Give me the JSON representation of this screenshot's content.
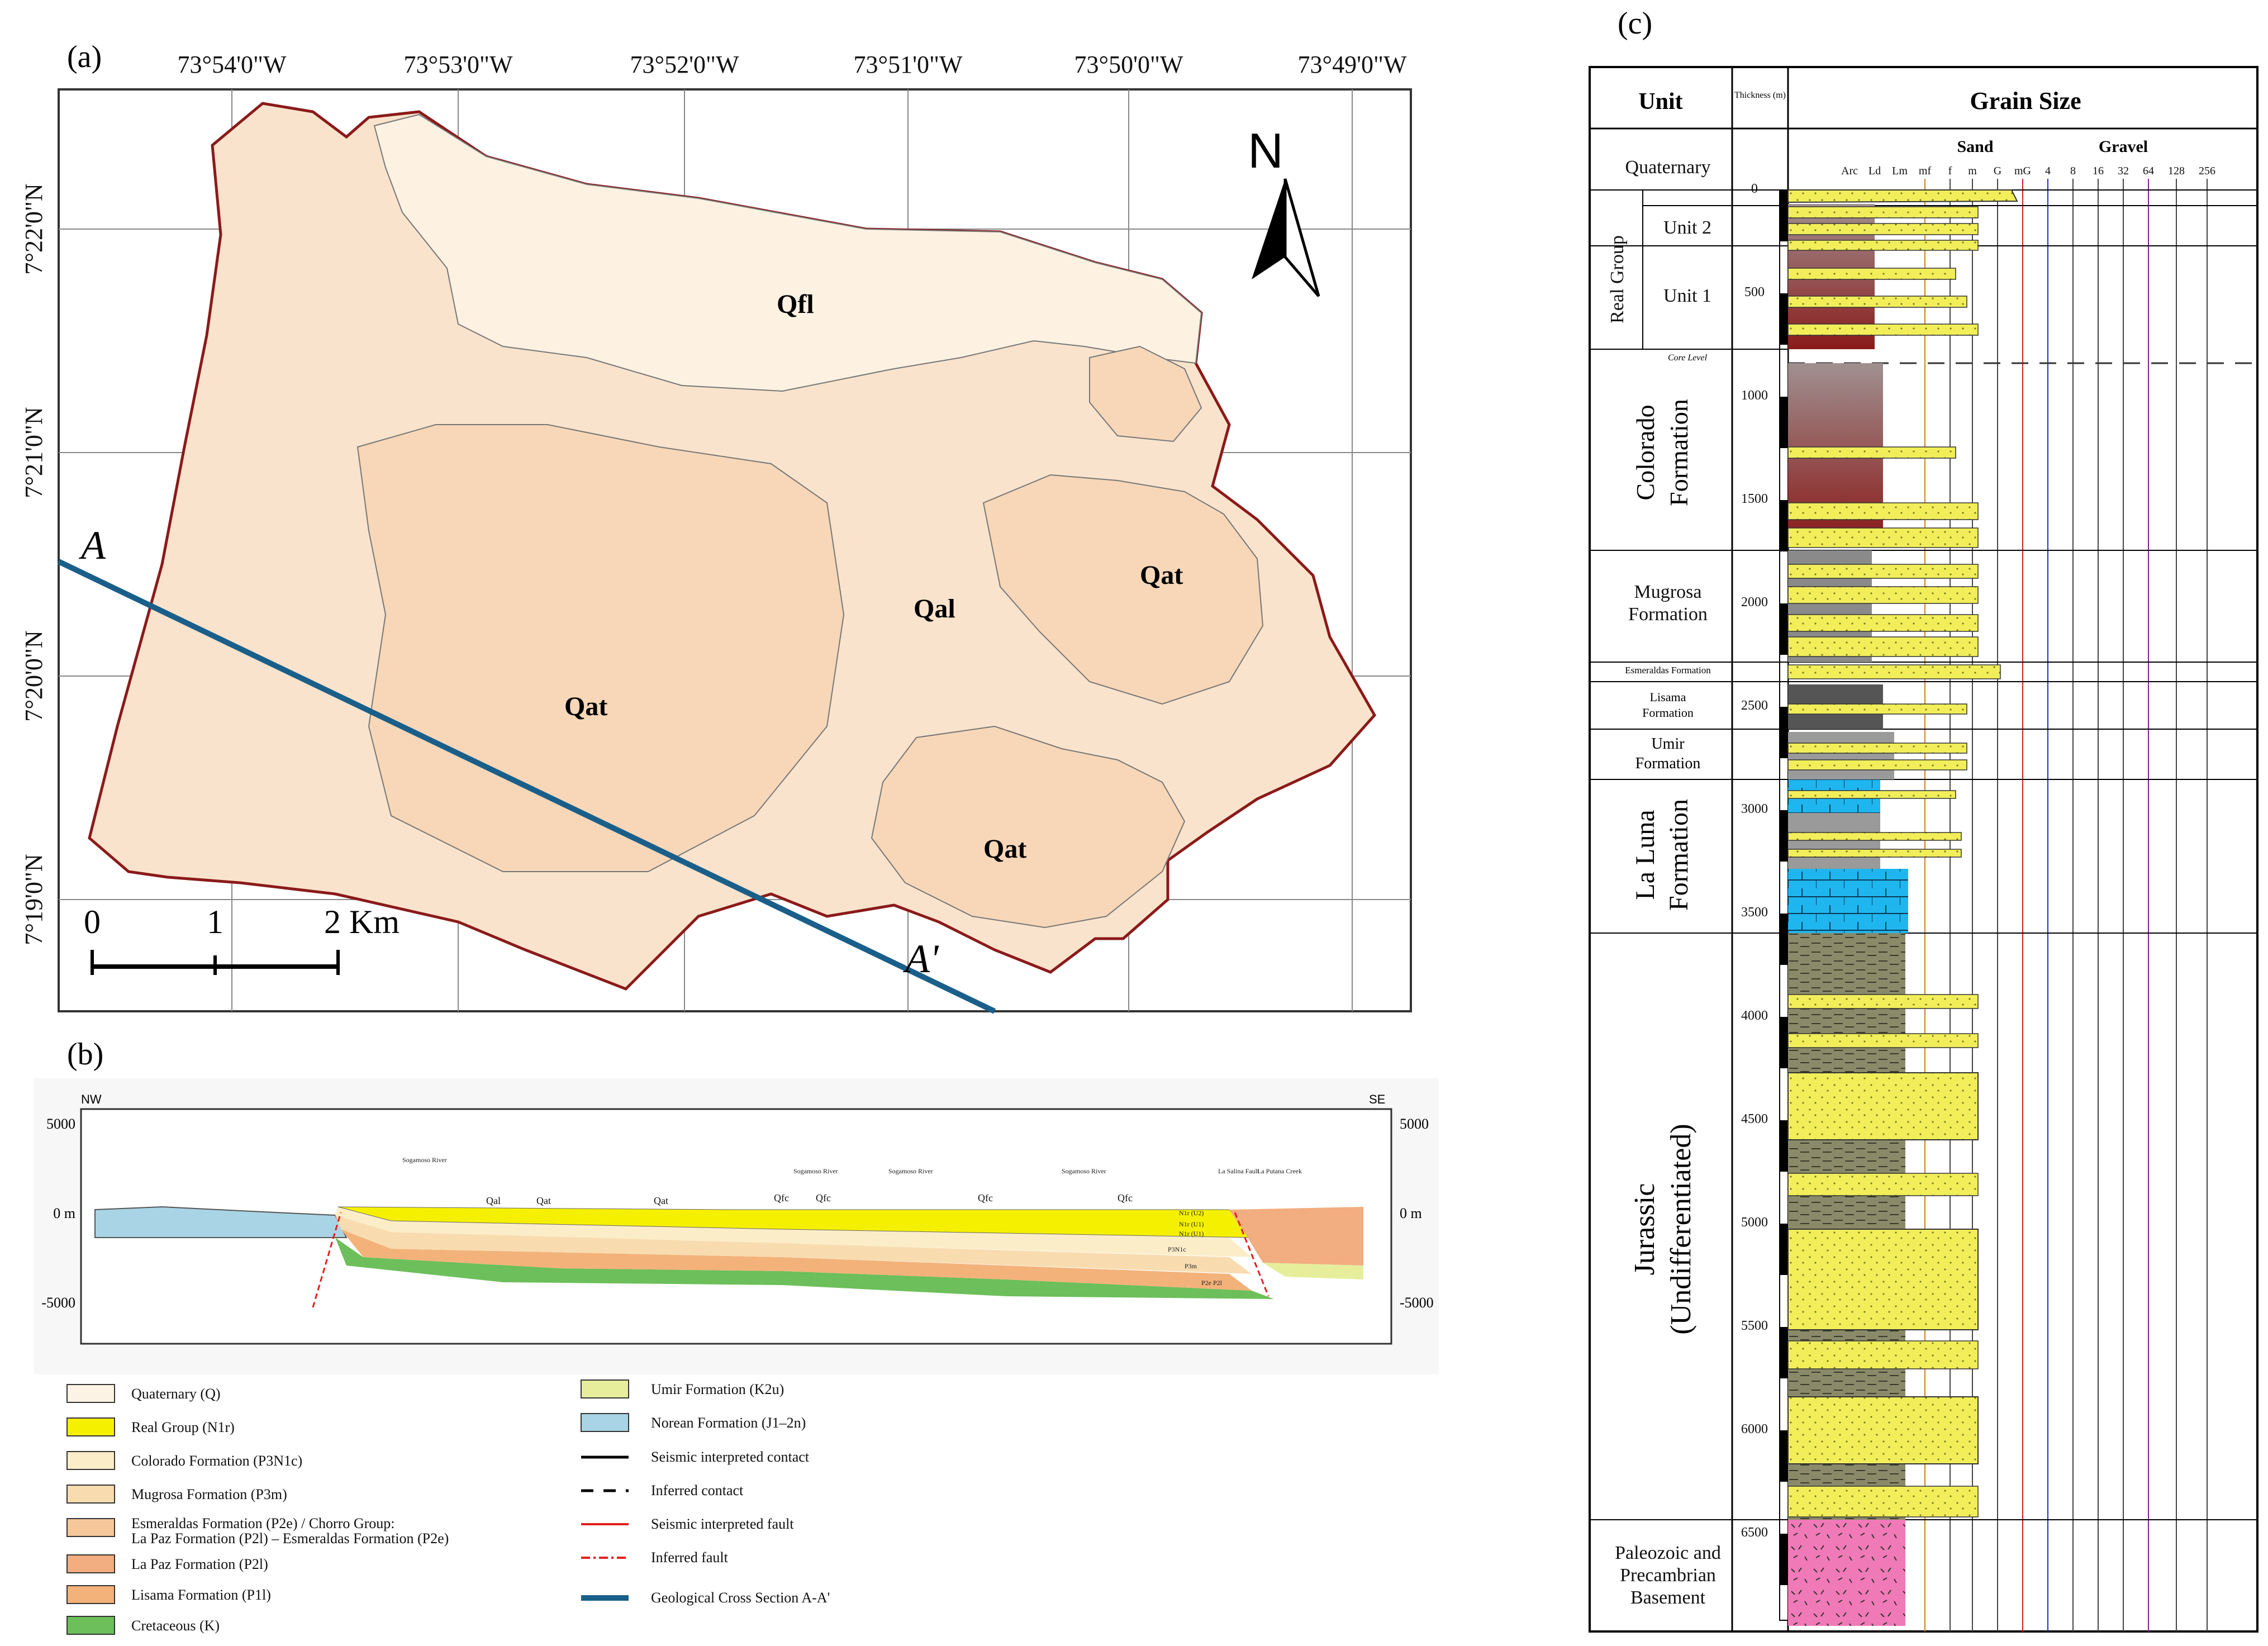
{
  "panels": {
    "a": "(a)",
    "b": "(b)",
    "c": "(c)"
  },
  "map": {
    "lon_labels": [
      "73°54'0\"W",
      "73°53'0\"W",
      "73°52'0\"W",
      "73°51'0\"W",
      "73°50'0\"W",
      "73°49'0\"W"
    ],
    "lat_labels": [
      "7°22'0\"N",
      "7°21'0\"N",
      "7°20'0\"N",
      "7°19'0\"N"
    ],
    "units": [
      {
        "code": "Qfl"
      },
      {
        "code": "Qal"
      },
      {
        "code": "Qat"
      },
      {
        "code": "Qat"
      },
      {
        "code": "Qat"
      }
    ],
    "north": "N",
    "section_start": "A",
    "section_end": "A'",
    "scale": {
      "ticks": [
        "0",
        "1",
        "2 Km"
      ]
    },
    "colors": {
      "base": "#f9e3cc",
      "qfl": "#fdf1e2",
      "qat": "#f7d7b8",
      "boundary": "#8b1a1a",
      "section": "#1a5f8a"
    }
  },
  "cross_section": {
    "nw": "NW",
    "se": "SE",
    "left_ticks": [
      "5000",
      "0 m",
      "-5000"
    ],
    "right_ticks": [
      "5000",
      "0 m",
      "-5000"
    ],
    "surface_labels": [
      "Qal",
      "Qat",
      "Qat",
      "Qfc",
      "Qfc",
      "Qfc",
      "Qfc"
    ],
    "river_labels": [
      "Sogamoso River",
      "Sogamoso River",
      "Sogamoso River",
      "Sogamoso River"
    ],
    "fault_labels": [
      "La Salina Fault",
      "La Putana Creek"
    ],
    "layer_labels": [
      "N1r (U2)",
      "N1r (U1)",
      "N1r (U1)",
      "P3N1c",
      "P3m",
      "P2e P2l"
    ]
  },
  "legend": {
    "left": [
      {
        "label": "Quaternary  (Q)",
        "color": "#fdf3e4"
      },
      {
        "label": "Real Group (N1r)",
        "color": "#f5f000"
      },
      {
        "label": "Colorado Formation (P3N1c)",
        "color": "#fbedc8"
      },
      {
        "label": "Mugrosa Formation (P3m)",
        "color": "#f8dcb0"
      },
      {
        "label": "Esmeraldas Formation (P2e) / Chorro Group:",
        "label2": "La Paz Formation (P2l) – Esmeraldas Formation (P2e)",
        "color": "#f5c79a"
      },
      {
        "label": "La Paz Formation (P2l)",
        "color": "#f2ad80"
      },
      {
        "label": "Lisama Formation (P1l)",
        "color": "#f3b27a"
      },
      {
        "label": "Cretaceous (K)",
        "color": "#6cbf5a"
      }
    ],
    "right": [
      {
        "label": "Umir Formation (K2u)",
        "type": "box",
        "color": "#e6ee9c"
      },
      {
        "label": "Norean Formation (J1–2n)",
        "type": "box",
        "color": "#a9d4e6"
      },
      {
        "label": "Seismic interpreted contact",
        "type": "line",
        "color": "#000000"
      },
      {
        "label": "Inferred contact",
        "type": "dash",
        "color": "#000000"
      },
      {
        "label": "Seismic interpreted fault",
        "type": "line",
        "color": "#e02020"
      },
      {
        "label": "Inferred fault",
        "type": "dashred",
        "color": "#e02020"
      },
      {
        "label": "Geological Cross Section A-A'",
        "type": "thick",
        "color": "#1a5f8a"
      }
    ]
  },
  "column": {
    "header_unit": "Unit",
    "header_thickness": "Thickness (m)",
    "header_grain": "Grain Size",
    "sand": "Sand",
    "gravel": "Gravel",
    "grain_ticks": [
      "Arc",
      "Ld",
      "Lm",
      "mf",
      "f",
      "m",
      "G",
      "mG",
      "4",
      "8",
      "16",
      "32",
      "64",
      "128",
      "256"
    ],
    "depths": [
      "0",
      "500",
      "1000",
      "1500",
      "2000",
      "2500",
      "3000",
      "3500",
      "4000",
      "4500",
      "5000",
      "5500",
      "6000",
      "6500"
    ],
    "core_level": "Core Level",
    "units": [
      {
        "name": "Quaternary"
      },
      {
        "name": "Unit 2"
      },
      {
        "name": "Unit 1"
      },
      {
        "name": "Real Group"
      },
      {
        "name": "Colorado",
        "name2": "Formation"
      },
      {
        "name": "Mugrosa",
        "name2": "Formation"
      },
      {
        "name": "Esmeraldas Formation"
      },
      {
        "name": "Lisama",
        "name2": "Formation"
      },
      {
        "name": "Umir",
        "name2": "Formation"
      },
      {
        "name": "La Luna",
        "name2": "Formation"
      },
      {
        "name": "Jurassic",
        "name2": "(Undifferentiated)"
      },
      {
        "name": "Paleozoic and",
        "name2": "Precambrian",
        "name3": "Basement"
      }
    ]
  }
}
